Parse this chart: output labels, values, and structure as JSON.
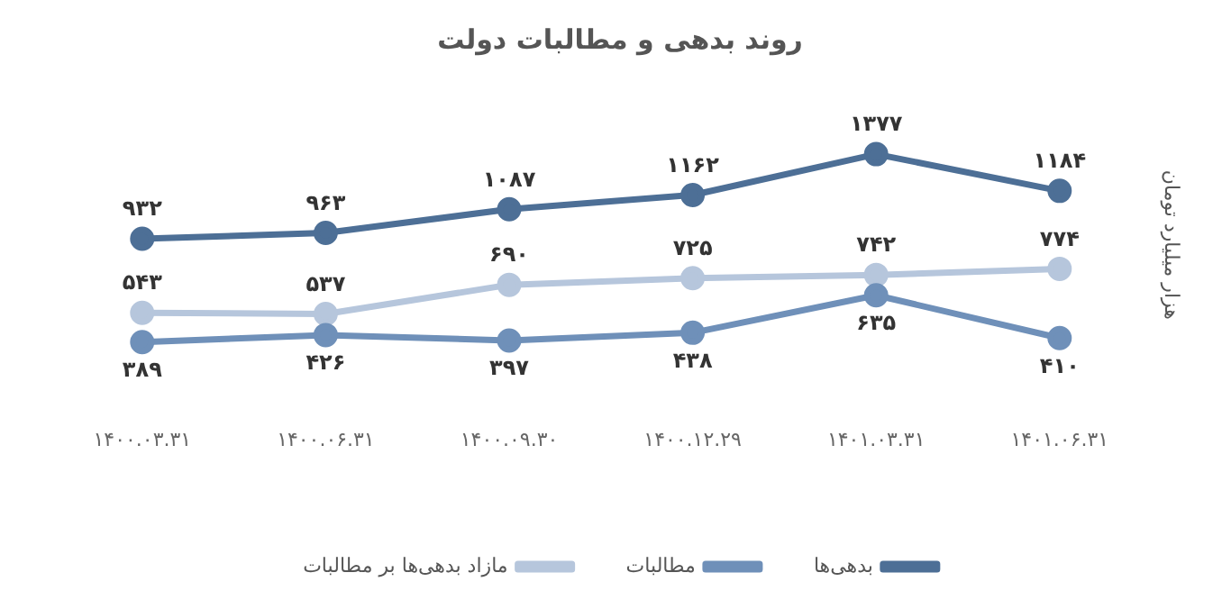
{
  "chart_data": {
    "type": "line",
    "title": "روند بدهی و مطالبات دولت",
    "ylabel": "هزار میلیارد تومان",
    "categories": [
      "۱۴۰۰.۰۳.۳۱",
      "۱۴۰۰.۰۶.۳۱",
      "۱۴۰۰.۰۹.۳۰",
      "۱۴۰۰.۱۲.۲۹",
      "۱۴۰۱.۰۳.۳۱",
      "۱۴۰۱.۰۶.۳۱"
    ],
    "series": [
      {
        "name": "بدهی‌ها",
        "color": "#4d6f96",
        "values": [
          932,
          963,
          1087,
          1162,
          1377,
          1184
        ],
        "value_labels": [
          "۹۳۲",
          "۹۶۳",
          "۱۰۸۷",
          "۱۱۶۲",
          "۱۳۷۷",
          "۱۱۸۴"
        ]
      },
      {
        "name": "مطالبات",
        "color": "#6f90b9",
        "values": [
          389,
          426,
          397,
          438,
          635,
          410
        ],
        "value_labels": [
          "۳۸۹",
          "۴۲۶",
          "۳۹۷",
          "۴۳۸",
          "۶۳۵",
          "۴۱۰"
        ]
      },
      {
        "name": "مازاد بدهی‌ها بر مطالبات",
        "color": "#b6c6dc",
        "values": [
          543,
          537,
          690,
          725,
          742,
          774
        ],
        "value_labels": [
          "۵۴۳",
          "۵۳۷",
          "۶۹۰",
          "۷۲۵",
          "۷۴۲",
          "۷۷۴"
        ]
      }
    ],
    "legend": "bottom",
    "marker": "circle",
    "grid": false
  }
}
